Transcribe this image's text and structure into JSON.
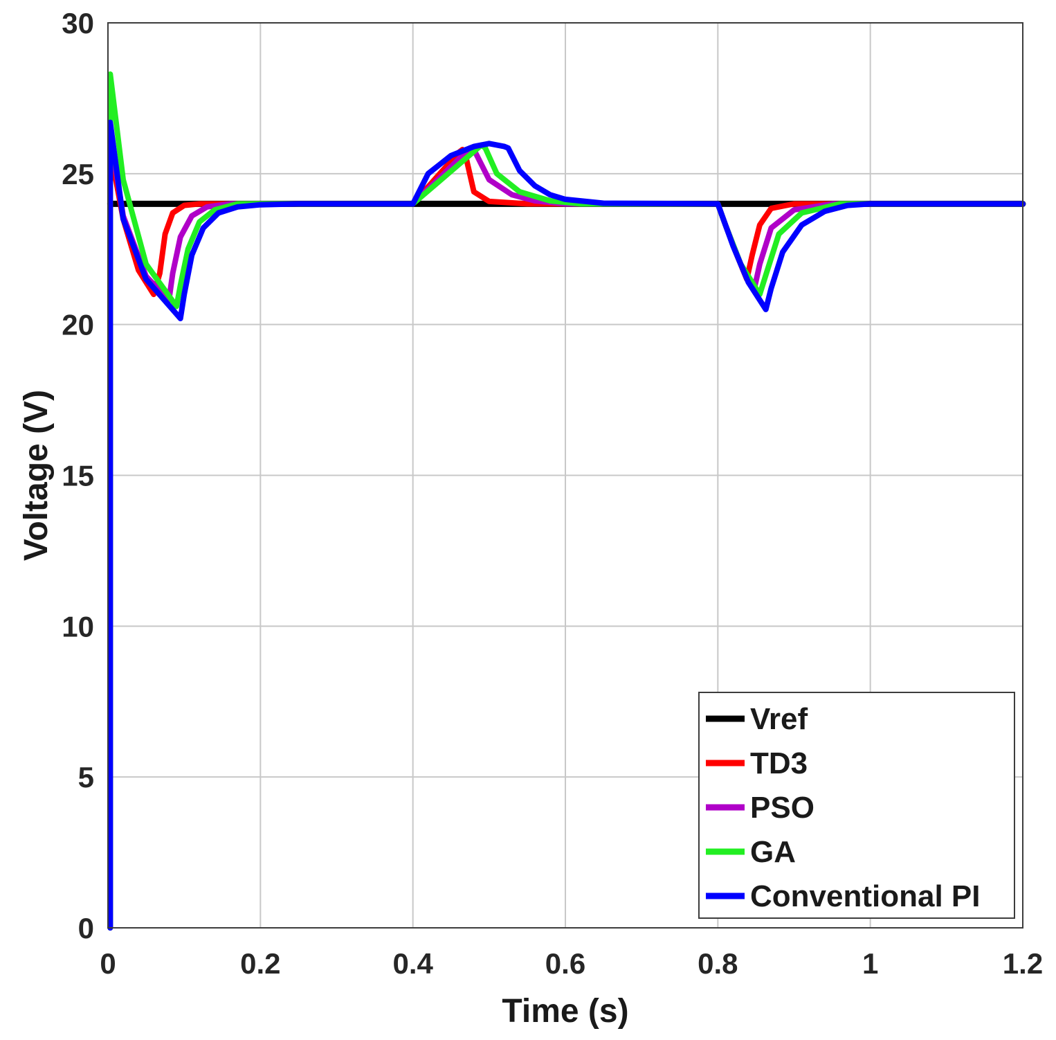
{
  "chart_data": {
    "type": "line",
    "title": "",
    "xlabel": "Time (s)",
    "ylabel": "Voltage (V)",
    "xlim": [
      0,
      1.2
    ],
    "ylim": [
      0,
      30
    ],
    "xticks": [
      0,
      0.2,
      0.4,
      0.6,
      0.8,
      1,
      1.2
    ],
    "xtick_labels": [
      "0",
      "0.2",
      "0.4",
      "0.6",
      "0.8",
      "1",
      "1.2"
    ],
    "yticks": [
      0,
      5,
      10,
      15,
      20,
      25,
      30
    ],
    "ytick_labels": [
      "0",
      "5",
      "10",
      "15",
      "20",
      "25",
      "30"
    ],
    "grid": true,
    "legend_position": "bottom-right",
    "series": [
      {
        "name": "Vref",
        "color": "#000000",
        "x": [
          0.003,
          1.2
        ],
        "y": [
          24,
          24
        ]
      },
      {
        "name": "TD3",
        "color": "#ff0000",
        "x": [
          0.003,
          0.003,
          0.02,
          0.04,
          0.06,
          0.068,
          0.075,
          0.085,
          0.1,
          0.12,
          0.15,
          0.2,
          0.4,
          0.46,
          0.465,
          0.47,
          0.48,
          0.5,
          0.55,
          0.8,
          0.81,
          0.825,
          0.838,
          0.845,
          0.855,
          0.87,
          0.9,
          0.95,
          1.2
        ],
        "y": [
          0,
          25.8,
          23.5,
          21.8,
          21.0,
          21.7,
          23.0,
          23.7,
          23.95,
          24.0,
          24.0,
          24.0,
          24.0,
          25.7,
          25.8,
          25.5,
          24.4,
          24.08,
          24.0,
          24.0,
          23.3,
          22.3,
          21.5,
          22.3,
          23.3,
          23.85,
          24.0,
          24.0,
          24.0
        ]
      },
      {
        "name": "PSO",
        "color": "#b000c8",
        "x": [
          0.003,
          0.003,
          0.02,
          0.05,
          0.08,
          0.085,
          0.095,
          0.11,
          0.13,
          0.16,
          0.2,
          0.4,
          0.475,
          0.48,
          0.5,
          0.53,
          0.56,
          0.6,
          0.8,
          0.81,
          0.83,
          0.848,
          0.855,
          0.87,
          0.9,
          0.95,
          1.2
        ],
        "y": [
          0,
          26.3,
          23.6,
          21.6,
          20.8,
          21.7,
          22.9,
          23.6,
          23.9,
          24.0,
          24.0,
          24.0,
          25.85,
          25.8,
          24.8,
          24.3,
          24.1,
          24.0,
          24.0,
          23.3,
          22.0,
          21.2,
          22.0,
          23.2,
          23.8,
          24.0,
          24.0
        ]
      },
      {
        "name": "GA",
        "color": "#22ee22",
        "x": [
          0.003,
          0.003,
          0.02,
          0.05,
          0.09,
          0.095,
          0.105,
          0.12,
          0.14,
          0.17,
          0.2,
          0.4,
          0.49,
          0.495,
          0.51,
          0.54,
          0.58,
          0.62,
          0.8,
          0.81,
          0.83,
          0.855,
          0.865,
          0.88,
          0.91,
          0.96,
          1.2
        ],
        "y": [
          0,
          28.3,
          24.8,
          22.0,
          20.6,
          21.3,
          22.5,
          23.4,
          23.8,
          24.0,
          24.0,
          24.0,
          25.95,
          25.85,
          25.0,
          24.4,
          24.1,
          24.0,
          24.0,
          23.3,
          22.0,
          21.0,
          21.8,
          23.0,
          23.7,
          24.0,
          24.0
        ]
      },
      {
        "name": "Conventional PI",
        "color": "#0000ff",
        "x": [
          0.003,
          0.003,
          0.02,
          0.05,
          0.095,
          0.1,
          0.11,
          0.125,
          0.145,
          0.17,
          0.2,
          0.25,
          0.4,
          0.42,
          0.45,
          0.48,
          0.5,
          0.52,
          0.525,
          0.54,
          0.56,
          0.58,
          0.6,
          0.65,
          0.8,
          0.82,
          0.84,
          0.863,
          0.87,
          0.885,
          0.91,
          0.94,
          0.97,
          1.0,
          1.2
        ],
        "y": [
          0,
          26.7,
          23.5,
          21.5,
          20.2,
          21.0,
          22.3,
          23.2,
          23.7,
          23.9,
          23.97,
          24.0,
          24.0,
          25.0,
          25.6,
          25.9,
          26.0,
          25.9,
          25.85,
          25.1,
          24.6,
          24.3,
          24.15,
          24.02,
          24.0,
          22.6,
          21.4,
          20.5,
          21.2,
          22.4,
          23.3,
          23.75,
          23.95,
          24.0,
          24.0
        ]
      }
    ]
  }
}
